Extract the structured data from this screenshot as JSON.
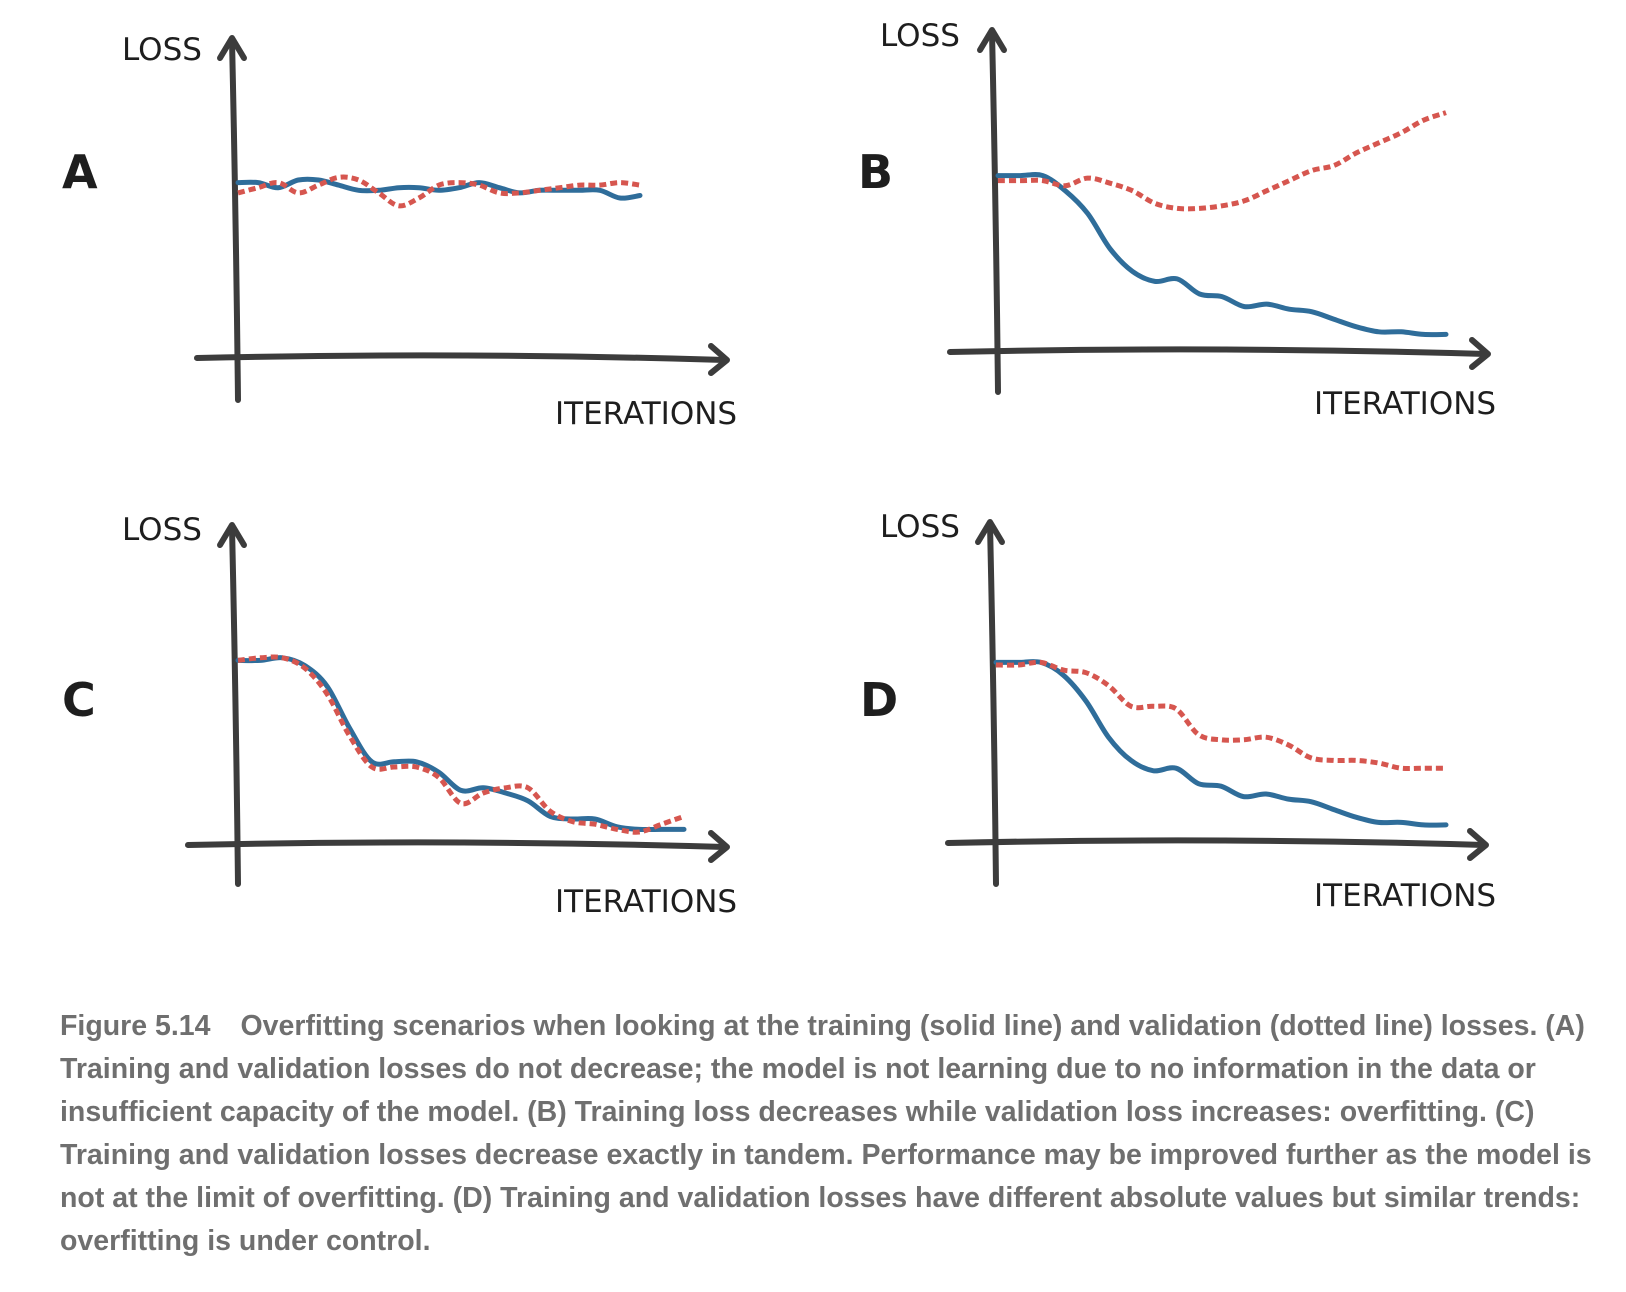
{
  "colors": {
    "training": "#2f6d9a",
    "validation": "#d6564f",
    "axis": "#3c3c3c"
  },
  "chart_data": [
    {
      "panel": "A",
      "type": "line",
      "xlabel": "ITERATIONS",
      "ylabel": "LOSS",
      "ylim": [
        0,
        100
      ],
      "series": [
        {
          "style": "solid",
          "x": [
            0,
            5,
            10,
            15,
            20,
            25,
            30,
            35,
            40,
            45,
            50,
            55,
            60,
            65,
            70,
            75,
            80,
            85,
            90,
            95,
            100
          ],
          "values": [
            68,
            68,
            66,
            69,
            69,
            67,
            65,
            65,
            66,
            66,
            65,
            66,
            68,
            66,
            64,
            65,
            65,
            65,
            65,
            62,
            63
          ]
        },
        {
          "style": "dotted",
          "x": [
            0,
            5,
            10,
            15,
            20,
            25,
            30,
            35,
            40,
            45,
            50,
            55,
            60,
            65,
            70,
            75,
            80,
            85,
            90,
            95,
            100
          ],
          "values": [
            64,
            66,
            68,
            64,
            67,
            70,
            69,
            64,
            59,
            62,
            67,
            68,
            67,
            64,
            64,
            65,
            66,
            67,
            67,
            68,
            67
          ]
        }
      ]
    },
    {
      "panel": "B",
      "type": "line",
      "xlabel": "ITERATIONS",
      "ylabel": "LOSS",
      "ylim": [
        0,
        100
      ],
      "series": [
        {
          "style": "solid",
          "x": [
            0,
            5,
            10,
            15,
            20,
            25,
            30,
            35,
            40,
            45,
            50,
            55,
            60,
            65,
            70,
            75,
            80,
            85,
            90,
            95,
            100
          ],
          "values": [
            70,
            70,
            70,
            64,
            55,
            41,
            32,
            28,
            29,
            23,
            22,
            18,
            19,
            17,
            16,
            13,
            10,
            8,
            8,
            7,
            7
          ]
        },
        {
          "style": "dotted",
          "x": [
            0,
            5,
            10,
            15,
            20,
            25,
            30,
            35,
            40,
            45,
            50,
            55,
            60,
            65,
            70,
            75,
            80,
            85,
            90,
            95,
            100
          ],
          "values": [
            68,
            68,
            68,
            66,
            69,
            67,
            64,
            59,
            57,
            57,
            58,
            60,
            64,
            68,
            72,
            74,
            79,
            83,
            87,
            92,
            95
          ]
        }
      ]
    },
    {
      "panel": "C",
      "type": "line",
      "xlabel": "ITERATIONS",
      "ylabel": "LOSS",
      "ylim": [
        0,
        100
      ],
      "series": [
        {
          "style": "solid",
          "x": [
            0,
            5,
            10,
            15,
            20,
            25,
            30,
            35,
            40,
            45,
            50,
            55,
            60,
            65,
            70,
            75,
            80,
            85,
            90,
            95,
            100
          ],
          "values": [
            71,
            71,
            72,
            69,
            61,
            45,
            32,
            32,
            32,
            28,
            21,
            22,
            20,
            17,
            11,
            10,
            10,
            7,
            6,
            6,
            6
          ]
        },
        {
          "style": "dotted",
          "x": [
            0,
            5,
            10,
            15,
            20,
            25,
            30,
            35,
            40,
            45,
            50,
            55,
            60,
            65,
            70,
            75,
            80,
            85,
            90,
            95,
            100
          ],
          "values": [
            71,
            72,
            72,
            68,
            58,
            42,
            30,
            30,
            30,
            26,
            16,
            20,
            22,
            22,
            13,
            9,
            8,
            6,
            5,
            8,
            11
          ]
        }
      ]
    },
    {
      "panel": "D",
      "type": "line",
      "xlabel": "ITERATIONS",
      "ylabel": "LOSS",
      "ylim": [
        0,
        100
      ],
      "series": [
        {
          "style": "solid",
          "x": [
            0,
            5,
            10,
            15,
            20,
            25,
            30,
            35,
            40,
            45,
            50,
            55,
            60,
            65,
            70,
            75,
            80,
            85,
            90,
            95,
            100
          ],
          "values": [
            70,
            70,
            70,
            65,
            55,
            41,
            32,
            28,
            29,
            23,
            22,
            18,
            19,
            17,
            16,
            13,
            10,
            8,
            8,
            7,
            7
          ]
        },
        {
          "style": "dotted",
          "x": [
            0,
            5,
            10,
            15,
            20,
            25,
            30,
            35,
            40,
            45,
            50,
            55,
            60,
            65,
            70,
            75,
            80,
            85,
            90,
            95,
            100
          ],
          "values": [
            69,
            69,
            70,
            67,
            66,
            61,
            53,
            53,
            52,
            42,
            40,
            40,
            41,
            38,
            33,
            32,
            32,
            31,
            29,
            29,
            29
          ]
        }
      ]
    }
  ],
  "caption": {
    "figure_number": "Figure 5.14",
    "text": "Overfitting scenarios when looking at the training (solid line) and validation (dotted line) losses. (A) Training and validation losses do not decrease; the model is not learning due to no information in the data or insufficient capacity of the model. (B) Training loss decreases while validation loss increases: overfitting. (C) Training and validation losses decrease exactly in tandem. Performance may be improved further as the model is not at the limit of overfitting. (D) Training and validation losses have different absolute values but similar trends: overfitting is under control."
  }
}
